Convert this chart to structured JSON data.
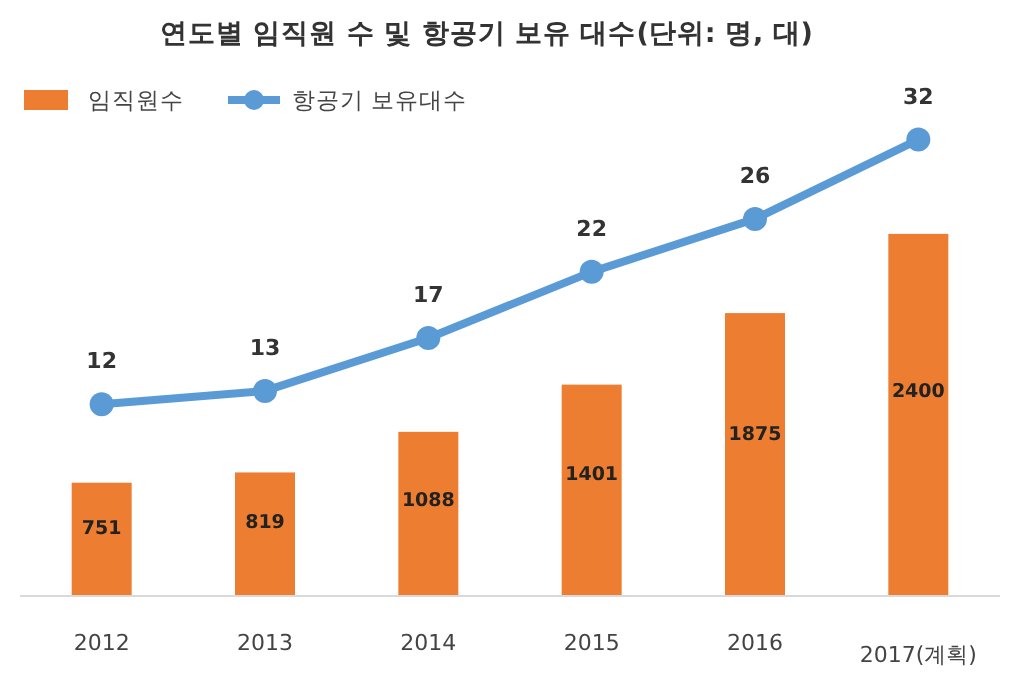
{
  "chart_data": {
    "type": "bar",
    "title": "연도별 임직원 수 및 항공기 보유 대수(단위: 명, 대)",
    "categories": [
      "2012",
      "2013",
      "2014",
      "2015",
      "2016",
      "2017(계획)"
    ],
    "series": [
      {
        "name": "임직원수",
        "color": "#ed7d31",
        "values": [
          751,
          819,
          1088,
          1401,
          1875,
          2400
        ]
      },
      {
        "name": "항공기 보유대수",
        "type": "line",
        "axis": "y2",
        "color": "#5b9bd5",
        "marker": "circle",
        "values": [
          12,
          13,
          17,
          22,
          26,
          32
        ]
      }
    ],
    "tick_labels": "x",
    "data_labels": true,
    "legend": "top left",
    "grid": false
  }
}
